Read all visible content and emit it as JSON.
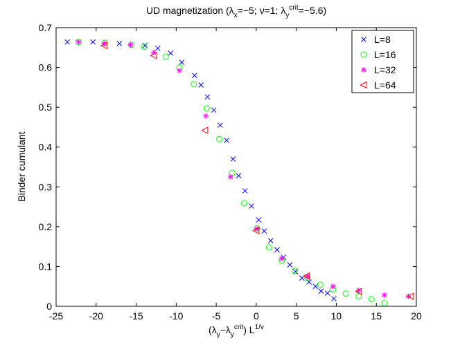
{
  "chart_data": {
    "type": "scatter",
    "title_parts": [
      {
        "text": "UD magnetization (λ"
      },
      {
        "text": "x",
        "script": "sub"
      },
      {
        "text": "=−5; ν=1; λ"
      },
      {
        "text": "y",
        "script": "sub"
      },
      {
        "text": "crit",
        "script": "sup"
      },
      {
        "text": "=−5.6)"
      }
    ],
    "xlabel_parts": [
      {
        "text": "(λ"
      },
      {
        "text": "y",
        "script": "sub"
      },
      {
        "text": "−λ"
      },
      {
        "text": "y",
        "script": "sub"
      },
      {
        "text": "crit",
        "script": "sup"
      },
      {
        "text": ") L"
      },
      {
        "text": "1/ν",
        "script": "sup"
      }
    ],
    "ylabel": "Binder cumulant",
    "xlim": [
      -25,
      20
    ],
    "xticks": [
      -25,
      -20,
      -15,
      -10,
      -5,
      0,
      5,
      10,
      15,
      20
    ],
    "ylim": [
      0,
      0.7
    ],
    "yticks": [
      0,
      0.1,
      0.2,
      0.3,
      0.4,
      0.5,
      0.6,
      0.7
    ],
    "legend": "upper right",
    "grid": false,
    "series": [
      {
        "name": "L=8",
        "color": "#0000ff",
        "marker": "x",
        "x": [
          -23.6,
          -20.4,
          -17.1,
          -13.9,
          -12.3,
          -10.7,
          -9.3,
          -7.7,
          -6.9,
          -6.1,
          -5.3,
          -4.5,
          -3.7,
          -2.9,
          -2.2,
          -1.4,
          -0.6,
          0.3,
          1.0,
          1.8,
          2.6,
          3.4,
          4.2,
          4.9,
          5.7,
          6.6,
          7.4,
          8.1,
          8.9,
          9.7
        ],
        "values": [
          0.664,
          0.664,
          0.66,
          0.655,
          0.648,
          0.636,
          0.613,
          0.58,
          0.556,
          0.526,
          0.493,
          0.455,
          0.417,
          0.37,
          0.328,
          0.29,
          0.252,
          0.217,
          0.189,
          0.165,
          0.142,
          0.123,
          0.104,
          0.087,
          0.071,
          0.061,
          0.05,
          0.038,
          0.033,
          0.019
        ]
      },
      {
        "name": "L=16",
        "color": "#00ff00",
        "marker": "o",
        "x": [
          -22.2,
          -18.9,
          -15.6,
          -14.0,
          -11.3,
          -9.6,
          -7.8,
          -6.2,
          -4.6,
          -3.0,
          -1.5,
          0.1,
          1.6,
          3.2,
          4.8,
          6.4,
          8.0,
          9.6,
          11.2,
          12.8,
          14.4,
          16.0
        ],
        "values": [
          0.664,
          0.662,
          0.657,
          0.652,
          0.627,
          0.6,
          0.558,
          0.497,
          0.42,
          0.335,
          0.259,
          0.196,
          0.148,
          0.115,
          0.089,
          0.071,
          0.054,
          0.042,
          0.032,
          0.025,
          0.018,
          0.008
        ]
      },
      {
        "name": "L=32",
        "color": "#ff00ff",
        "marker": "*",
        "x": [
          -22.2,
          -19.0,
          -15.7,
          -12.8,
          -9.6,
          -6.3,
          -3.2,
          0.1,
          3.2,
          6.4,
          9.6,
          12.8,
          16.0,
          19.0
        ],
        "values": [
          0.664,
          0.66,
          0.657,
          0.638,
          0.592,
          0.478,
          0.325,
          0.195,
          0.12,
          0.075,
          0.05,
          0.04,
          0.028,
          0.025
        ]
      },
      {
        "name": "L=64",
        "color": "#ff0000",
        "marker": "<",
        "x": [
          -19.0,
          -12.8,
          -6.4,
          0.0,
          6.3,
          12.8,
          19.3
        ],
        "values": [
          0.655,
          0.63,
          0.442,
          0.19,
          0.076,
          0.037,
          0.025
        ]
      }
    ]
  }
}
